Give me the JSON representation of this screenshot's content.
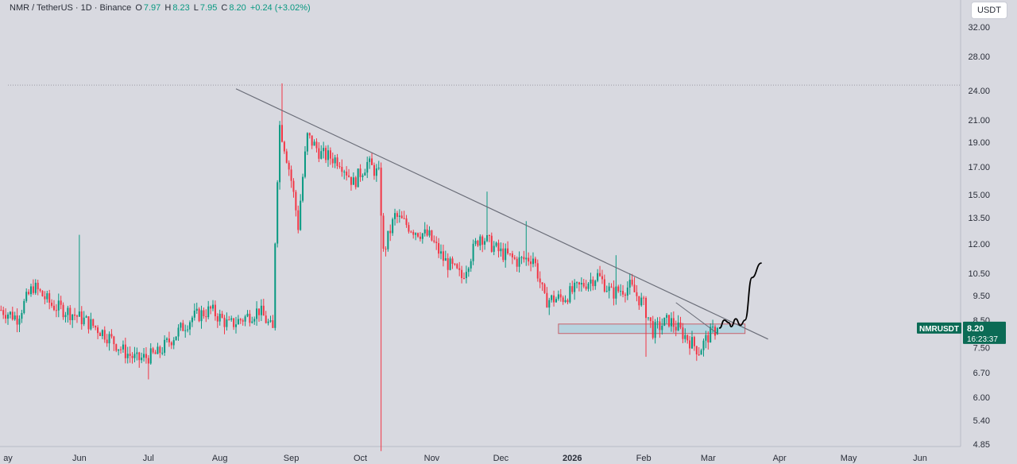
{
  "legend": {
    "symbol": "NMR / TetherUS · 1D · Binance",
    "o_label": "O",
    "o_value": "7.97",
    "h_label": "H",
    "h_value": "8.23",
    "l_label": "L",
    "l_value": "7.95",
    "c_label": "C",
    "c_value": "8.20",
    "change": "+0.24 (+3.02%)"
  },
  "currency": "USDT",
  "price_badge": {
    "ticker": "NMRUSDT",
    "price": "8.20",
    "countdown": "16:23:37"
  },
  "colors": {
    "up": "#089981",
    "down": "#f23645",
    "background": "#d8d9e0",
    "trendline": "#6a6d78",
    "zone": "#b7d3df",
    "drawing": "#000000"
  },
  "chart_data": {
    "type": "candlestick",
    "scale": "log",
    "ylim": [
      4.6,
      34
    ],
    "price_ticks": [
      "32.00",
      "28.00",
      "24.00",
      "21.00",
      "19.00",
      "17.00",
      "15.00",
      "13.50",
      "12.00",
      "10.50",
      "9.50",
      "8.50",
      "7.50",
      "6.70",
      "6.00",
      "5.40",
      "4.85"
    ],
    "time_ticks": [
      {
        "label": "ay",
        "date": "2025-05-01"
      },
      {
        "label": "Jun",
        "date": "2025-06-01"
      },
      {
        "label": "Jul",
        "date": "2025-07-01"
      },
      {
        "label": "Aug",
        "date": "2025-08-01"
      },
      {
        "label": "Sep",
        "date": "2025-09-01"
      },
      {
        "label": "Oct",
        "date": "2025-10-01"
      },
      {
        "label": "Nov",
        "date": "2025-11-01"
      },
      {
        "label": "Dec",
        "date": "2025-12-01"
      },
      {
        "label": "2026",
        "date": "2026-01-01",
        "bold": true
      },
      {
        "label": "Feb",
        "date": "2026-02-01"
      },
      {
        "label": "Mar",
        "date": "2026-03-01"
      },
      {
        "label": "Apr",
        "date": "2026-04-01"
      },
      {
        "label": "May",
        "date": "2026-05-01"
      },
      {
        "label": "Jun",
        "date": "2026-06-01"
      }
    ],
    "anchor_closes": [
      [
        "2025-04-28",
        8.9
      ],
      [
        "2025-05-05",
        8.6
      ],
      [
        "2025-05-12",
        9.9
      ],
      [
        "2025-05-20",
        9.1
      ],
      [
        "2025-05-28",
        8.8
      ],
      [
        "2025-06-05",
        8.4
      ],
      [
        "2025-06-12",
        8.0
      ],
      [
        "2025-06-20",
        7.4
      ],
      [
        "2025-06-26",
        7.1
      ],
      [
        "2025-07-05",
        7.3
      ],
      [
        "2025-07-12",
        7.9
      ],
      [
        "2025-07-20",
        8.6
      ],
      [
        "2025-07-28",
        8.9
      ],
      [
        "2025-08-05",
        8.3
      ],
      [
        "2025-08-12",
        8.6
      ],
      [
        "2025-08-18",
        8.9
      ],
      [
        "2025-08-24",
        8.1
      ],
      [
        "2025-08-27",
        20.5
      ],
      [
        "2025-09-01",
        16.0
      ],
      [
        "2025-09-04",
        13.0
      ],
      [
        "2025-09-08",
        19.5
      ],
      [
        "2025-09-14",
        18.0
      ],
      [
        "2025-09-22",
        17.5
      ],
      [
        "2025-09-28",
        15.8
      ],
      [
        "2025-10-04",
        17.3
      ],
      [
        "2025-10-09",
        16.4
      ],
      [
        "2025-10-11",
        11.5
      ],
      [
        "2025-10-16",
        13.6
      ],
      [
        "2025-10-24",
        12.8
      ],
      [
        "2025-10-31",
        12.4
      ],
      [
        "2025-11-06",
        11.2
      ],
      [
        "2025-11-14",
        10.3
      ],
      [
        "2025-11-22",
        12.5
      ],
      [
        "2025-11-30",
        11.6
      ],
      [
        "2025-12-08",
        11.1
      ],
      [
        "2025-12-15",
        11.3
      ],
      [
        "2025-12-20",
        9.3
      ],
      [
        "2025-12-28",
        9.4
      ],
      [
        "2026-01-06",
        10.0
      ],
      [
        "2026-01-12",
        10.4
      ],
      [
        "2026-01-18",
        9.6
      ],
      [
        "2026-01-26",
        9.9
      ],
      [
        "2026-02-01",
        9.1
      ],
      [
        "2026-02-05",
        8.1
      ],
      [
        "2026-02-12",
        8.5
      ],
      [
        "2026-02-18",
        8.0
      ],
      [
        "2026-02-25",
        7.4
      ],
      [
        "2026-03-01",
        7.9
      ],
      [
        "2026-03-05",
        8.2
      ]
    ],
    "spikes": [
      {
        "date": "2025-06-01",
        "high": 12.5
      },
      {
        "date": "2025-07-01",
        "low": 6.5
      },
      {
        "date": "2025-08-28",
        "high": 24.8
      },
      {
        "date": "2025-10-10",
        "low": 4.7
      },
      {
        "date": "2025-11-25",
        "high": 15.2
      },
      {
        "date": "2025-12-12",
        "high": 13.3
      },
      {
        "date": "2026-01-20",
        "high": 11.4
      },
      {
        "date": "2026-02-02",
        "low": 7.2
      }
    ],
    "last_candle": {
      "date": "2026-03-05",
      "open": 7.97,
      "high": 8.23,
      "low": 7.95,
      "close": 8.2
    },
    "horizontal_line": 24.6,
    "trendline": {
      "start": [
        "2025-08-08",
        24.2
      ],
      "end": [
        "2026-03-27",
        7.8
      ]
    },
    "short_trendline": {
      "start": [
        "2026-02-15",
        9.2
      ],
      "end": [
        "2026-03-05",
        8.0
      ]
    },
    "zone": {
      "start": "2025-12-26",
      "end": "2026-03-17",
      "low": 8.0,
      "high": 8.35
    },
    "projection": [
      [
        "2026-03-06",
        8.2
      ],
      [
        "2026-03-08",
        8.5
      ],
      [
        "2026-03-10",
        8.4
      ],
      [
        "2026-03-11",
        8.25
      ],
      [
        "2026-03-13",
        8.55
      ],
      [
        "2026-03-15",
        8.3
      ],
      [
        "2026-03-17",
        8.5
      ],
      [
        "2026-03-20",
        10.3
      ],
      [
        "2026-03-24",
        11.0
      ]
    ]
  }
}
